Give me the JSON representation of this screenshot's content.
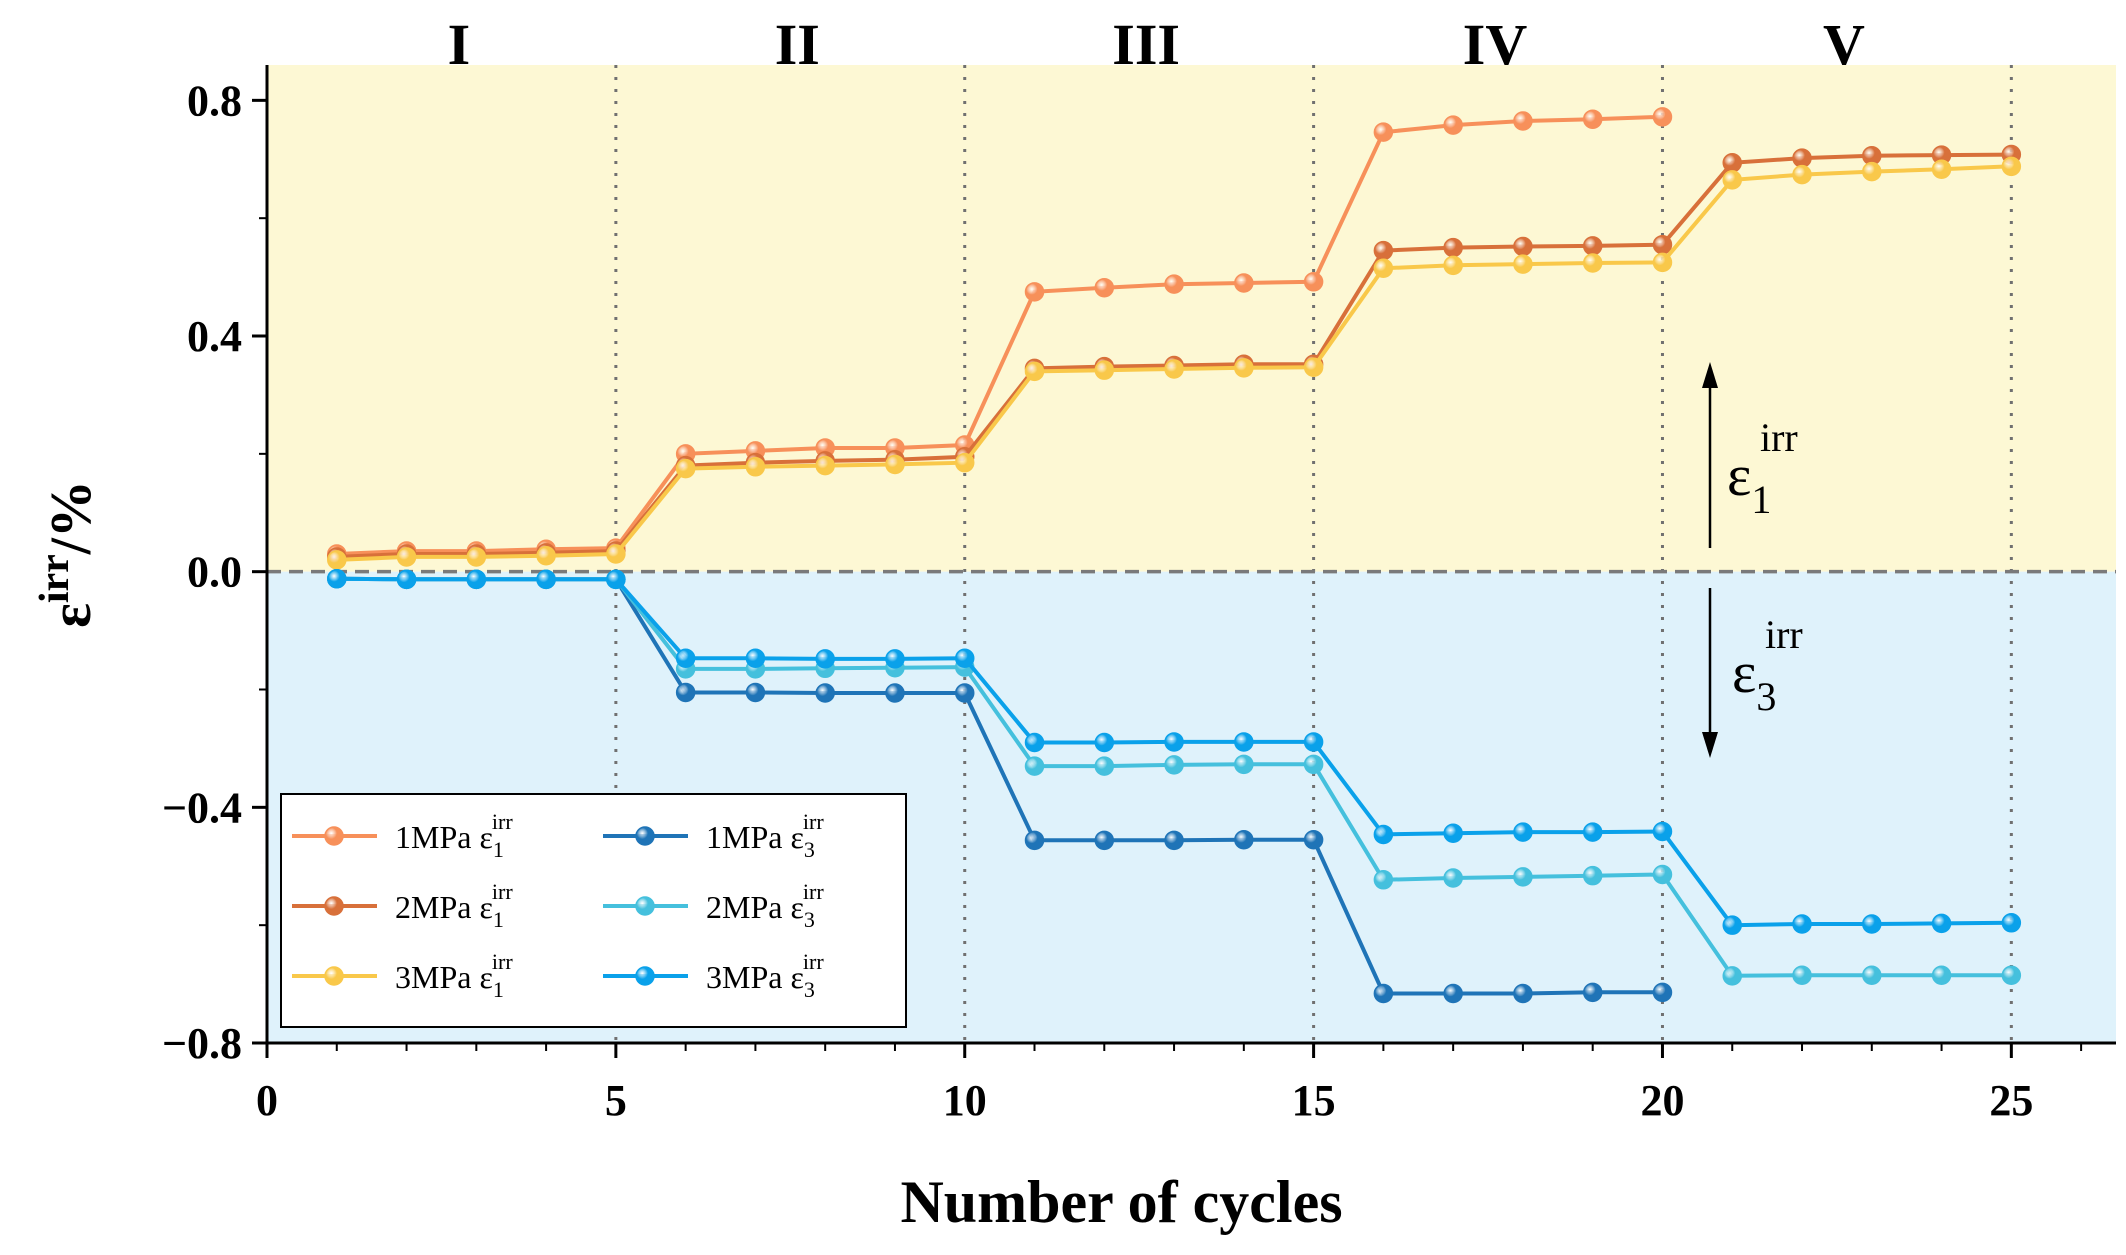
{
  "chart_data": {
    "type": "line",
    "title": "",
    "xlabel": "Number of cycles",
    "ylabel": "ε",
    "ylabel_sup": "irr",
    "ylabel_suffix": "/%",
    "xlim": [
      0,
      26.5
    ],
    "ylim": [
      -0.8,
      0.86
    ],
    "xticks": [
      0,
      5,
      10,
      15,
      20,
      25
    ],
    "xtick_labels": [
      "0",
      "5",
      "10",
      "15",
      "20",
      "25"
    ],
    "yticks": [
      0.8,
      0.4,
      0.0,
      -0.4,
      -0.8
    ],
    "ytick_labels": [
      "0.8",
      "0.4",
      "0.0",
      "−0.4",
      "−0.8"
    ],
    "stage_dividers": [
      5,
      10,
      15,
      20,
      25
    ],
    "stages": [
      {
        "label": "I",
        "x": 2.75
      },
      {
        "label": "II",
        "x": 7.6
      },
      {
        "label": "III",
        "x": 12.6
      },
      {
        "label": "IV",
        "x": 17.6
      },
      {
        "label": "V",
        "x": 22.6
      }
    ],
    "zero_line": 0.0,
    "regions": {
      "upper_color": "#fdf8d4",
      "lower_color": "#dff2fb"
    },
    "annotations": {
      "eps1": {
        "base": "ε",
        "sup": "irr",
        "sub": "1"
      },
      "eps3": {
        "base": "ε",
        "sup": "irr",
        "sub": "3"
      }
    },
    "legend": {
      "placement": "bottom-left"
    },
    "series": [
      {
        "name": "1MPa ε1irr",
        "label": "1MPa",
        "sub": "1",
        "color": "#f7905a",
        "x": [
          1,
          2,
          3,
          4,
          5,
          6,
          7,
          8,
          9,
          10,
          11,
          12,
          13,
          14,
          15,
          16,
          17,
          18,
          19,
          20
        ],
        "y": [
          0.03,
          0.035,
          0.035,
          0.038,
          0.04,
          0.2,
          0.205,
          0.21,
          0.21,
          0.215,
          0.475,
          0.482,
          0.488,
          0.49,
          0.492,
          0.746,
          0.758,
          0.765,
          0.768,
          0.772
        ]
      },
      {
        "name": "2MPa ε1irr",
        "label": "2MPa",
        "sub": "1",
        "color": "#d8703a",
        "x": [
          1,
          2,
          3,
          4,
          5,
          6,
          7,
          8,
          9,
          10,
          11,
          12,
          13,
          14,
          15,
          16,
          17,
          18,
          19,
          20,
          21,
          22,
          23,
          24,
          25
        ],
        "y": [
          0.025,
          0.03,
          0.03,
          0.032,
          0.035,
          0.18,
          0.185,
          0.188,
          0.19,
          0.195,
          0.345,
          0.348,
          0.35,
          0.352,
          0.352,
          0.545,
          0.55,
          0.552,
          0.553,
          0.555,
          0.694,
          0.702,
          0.706,
          0.707,
          0.708
        ]
      },
      {
        "name": "3MPa ε1irr",
        "label": "3MPa",
        "sub": "1",
        "color": "#f9c84a",
        "x": [
          1,
          2,
          3,
          4,
          5,
          6,
          7,
          8,
          9,
          10,
          11,
          12,
          13,
          14,
          15,
          16,
          17,
          18,
          19,
          20,
          21,
          22,
          23,
          24,
          25
        ],
        "y": [
          0.02,
          0.025,
          0.025,
          0.027,
          0.03,
          0.175,
          0.178,
          0.18,
          0.182,
          0.185,
          0.34,
          0.342,
          0.344,
          0.346,
          0.347,
          0.515,
          0.52,
          0.522,
          0.524,
          0.525,
          0.665,
          0.674,
          0.679,
          0.683,
          0.688
        ]
      },
      {
        "name": "1MPa ε3irr",
        "label": "1MPa",
        "sub": "3",
        "color": "#1f74b7",
        "x": [
          1,
          2,
          3,
          4,
          5,
          6,
          7,
          8,
          9,
          10,
          11,
          12,
          13,
          14,
          15,
          16,
          17,
          18,
          19,
          20
        ],
        "y": [
          -0.012,
          -0.013,
          -0.013,
          -0.013,
          -0.013,
          -0.205,
          -0.205,
          -0.206,
          -0.206,
          -0.206,
          -0.456,
          -0.456,
          -0.456,
          -0.455,
          -0.455,
          -0.716,
          -0.716,
          -0.716,
          -0.714,
          -0.714
        ]
      },
      {
        "name": "2MPa ε3irr",
        "label": "2MPa",
        "sub": "3",
        "color": "#45c0dd",
        "x": [
          1,
          2,
          3,
          4,
          5,
          6,
          7,
          8,
          9,
          10,
          11,
          12,
          13,
          14,
          15,
          16,
          17,
          18,
          19,
          20,
          21,
          22,
          23,
          24,
          25
        ],
        "y": [
          -0.012,
          -0.013,
          -0.013,
          -0.013,
          -0.013,
          -0.165,
          -0.165,
          -0.164,
          -0.163,
          -0.162,
          -0.33,
          -0.33,
          -0.328,
          -0.327,
          -0.327,
          -0.523,
          -0.52,
          -0.518,
          -0.516,
          -0.514,
          -0.686,
          -0.685,
          -0.685,
          -0.685,
          -0.685
        ]
      },
      {
        "name": "3MPa ε3irr",
        "label": "3MPa",
        "sub": "3",
        "color": "#0aa1ea",
        "x": [
          1,
          2,
          3,
          4,
          5,
          6,
          7,
          8,
          9,
          10,
          11,
          12,
          13,
          14,
          15,
          16,
          17,
          18,
          19,
          20,
          21,
          22,
          23,
          24,
          25
        ],
        "y": [
          -0.012,
          -0.013,
          -0.013,
          -0.013,
          -0.013,
          -0.147,
          -0.147,
          -0.148,
          -0.148,
          -0.147,
          -0.29,
          -0.29,
          -0.289,
          -0.289,
          -0.289,
          -0.446,
          -0.444,
          -0.442,
          -0.442,
          -0.441,
          -0.6,
          -0.598,
          -0.598,
          -0.597,
          -0.596
        ]
      }
    ]
  }
}
